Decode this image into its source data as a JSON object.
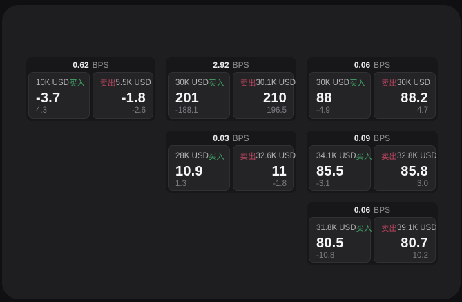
{
  "labels": {
    "bps_unit": "BPS",
    "buy": "买入",
    "sell": "卖出"
  },
  "colors": {
    "backdrop": "#101012",
    "window_bg": "#1e1e20",
    "card_bg": "#17171a",
    "tile_bg": "#242427",
    "buy_accent": "#3fa566",
    "sell_accent": "#bf4760"
  },
  "cards": [
    {
      "bps": "0.62",
      "buy": {
        "amount": "10K USD",
        "price": "-3.7",
        "sub": "4.3"
      },
      "sell": {
        "amount": "5.5K USD",
        "price": "-1.8",
        "sub": "-2.6"
      }
    },
    {
      "bps": "2.92",
      "buy": {
        "amount": "30K USD",
        "price": "201",
        "sub": "-188.1"
      },
      "sell": {
        "amount": "30.1K USD",
        "price": "210",
        "sub": "196.5"
      }
    },
    {
      "bps": "0.06",
      "buy": {
        "amount": "30K USD",
        "price": "88",
        "sub": "-4.9"
      },
      "sell": {
        "amount": "30K USD",
        "price": "88.2",
        "sub": "4.7"
      }
    },
    {
      "bps": "0.03",
      "buy": {
        "amount": "28K USD",
        "price": "10.9",
        "sub": "1.3"
      },
      "sell": {
        "amount": "32.6K USD",
        "price": "11",
        "sub": "-1.8"
      }
    },
    {
      "bps": "0.09",
      "buy": {
        "amount": "34.1K USD",
        "price": "85.5",
        "sub": "-3.1"
      },
      "sell": {
        "amount": "32.8K USD",
        "price": "85.8",
        "sub": "3.0"
      }
    },
    {
      "bps": "0.06",
      "buy": {
        "amount": "31.8K USD",
        "price": "80.5",
        "sub": "-10.8"
      },
      "sell": {
        "amount": "39.1K USD",
        "price": "80.7",
        "sub": "10.2"
      }
    }
  ]
}
